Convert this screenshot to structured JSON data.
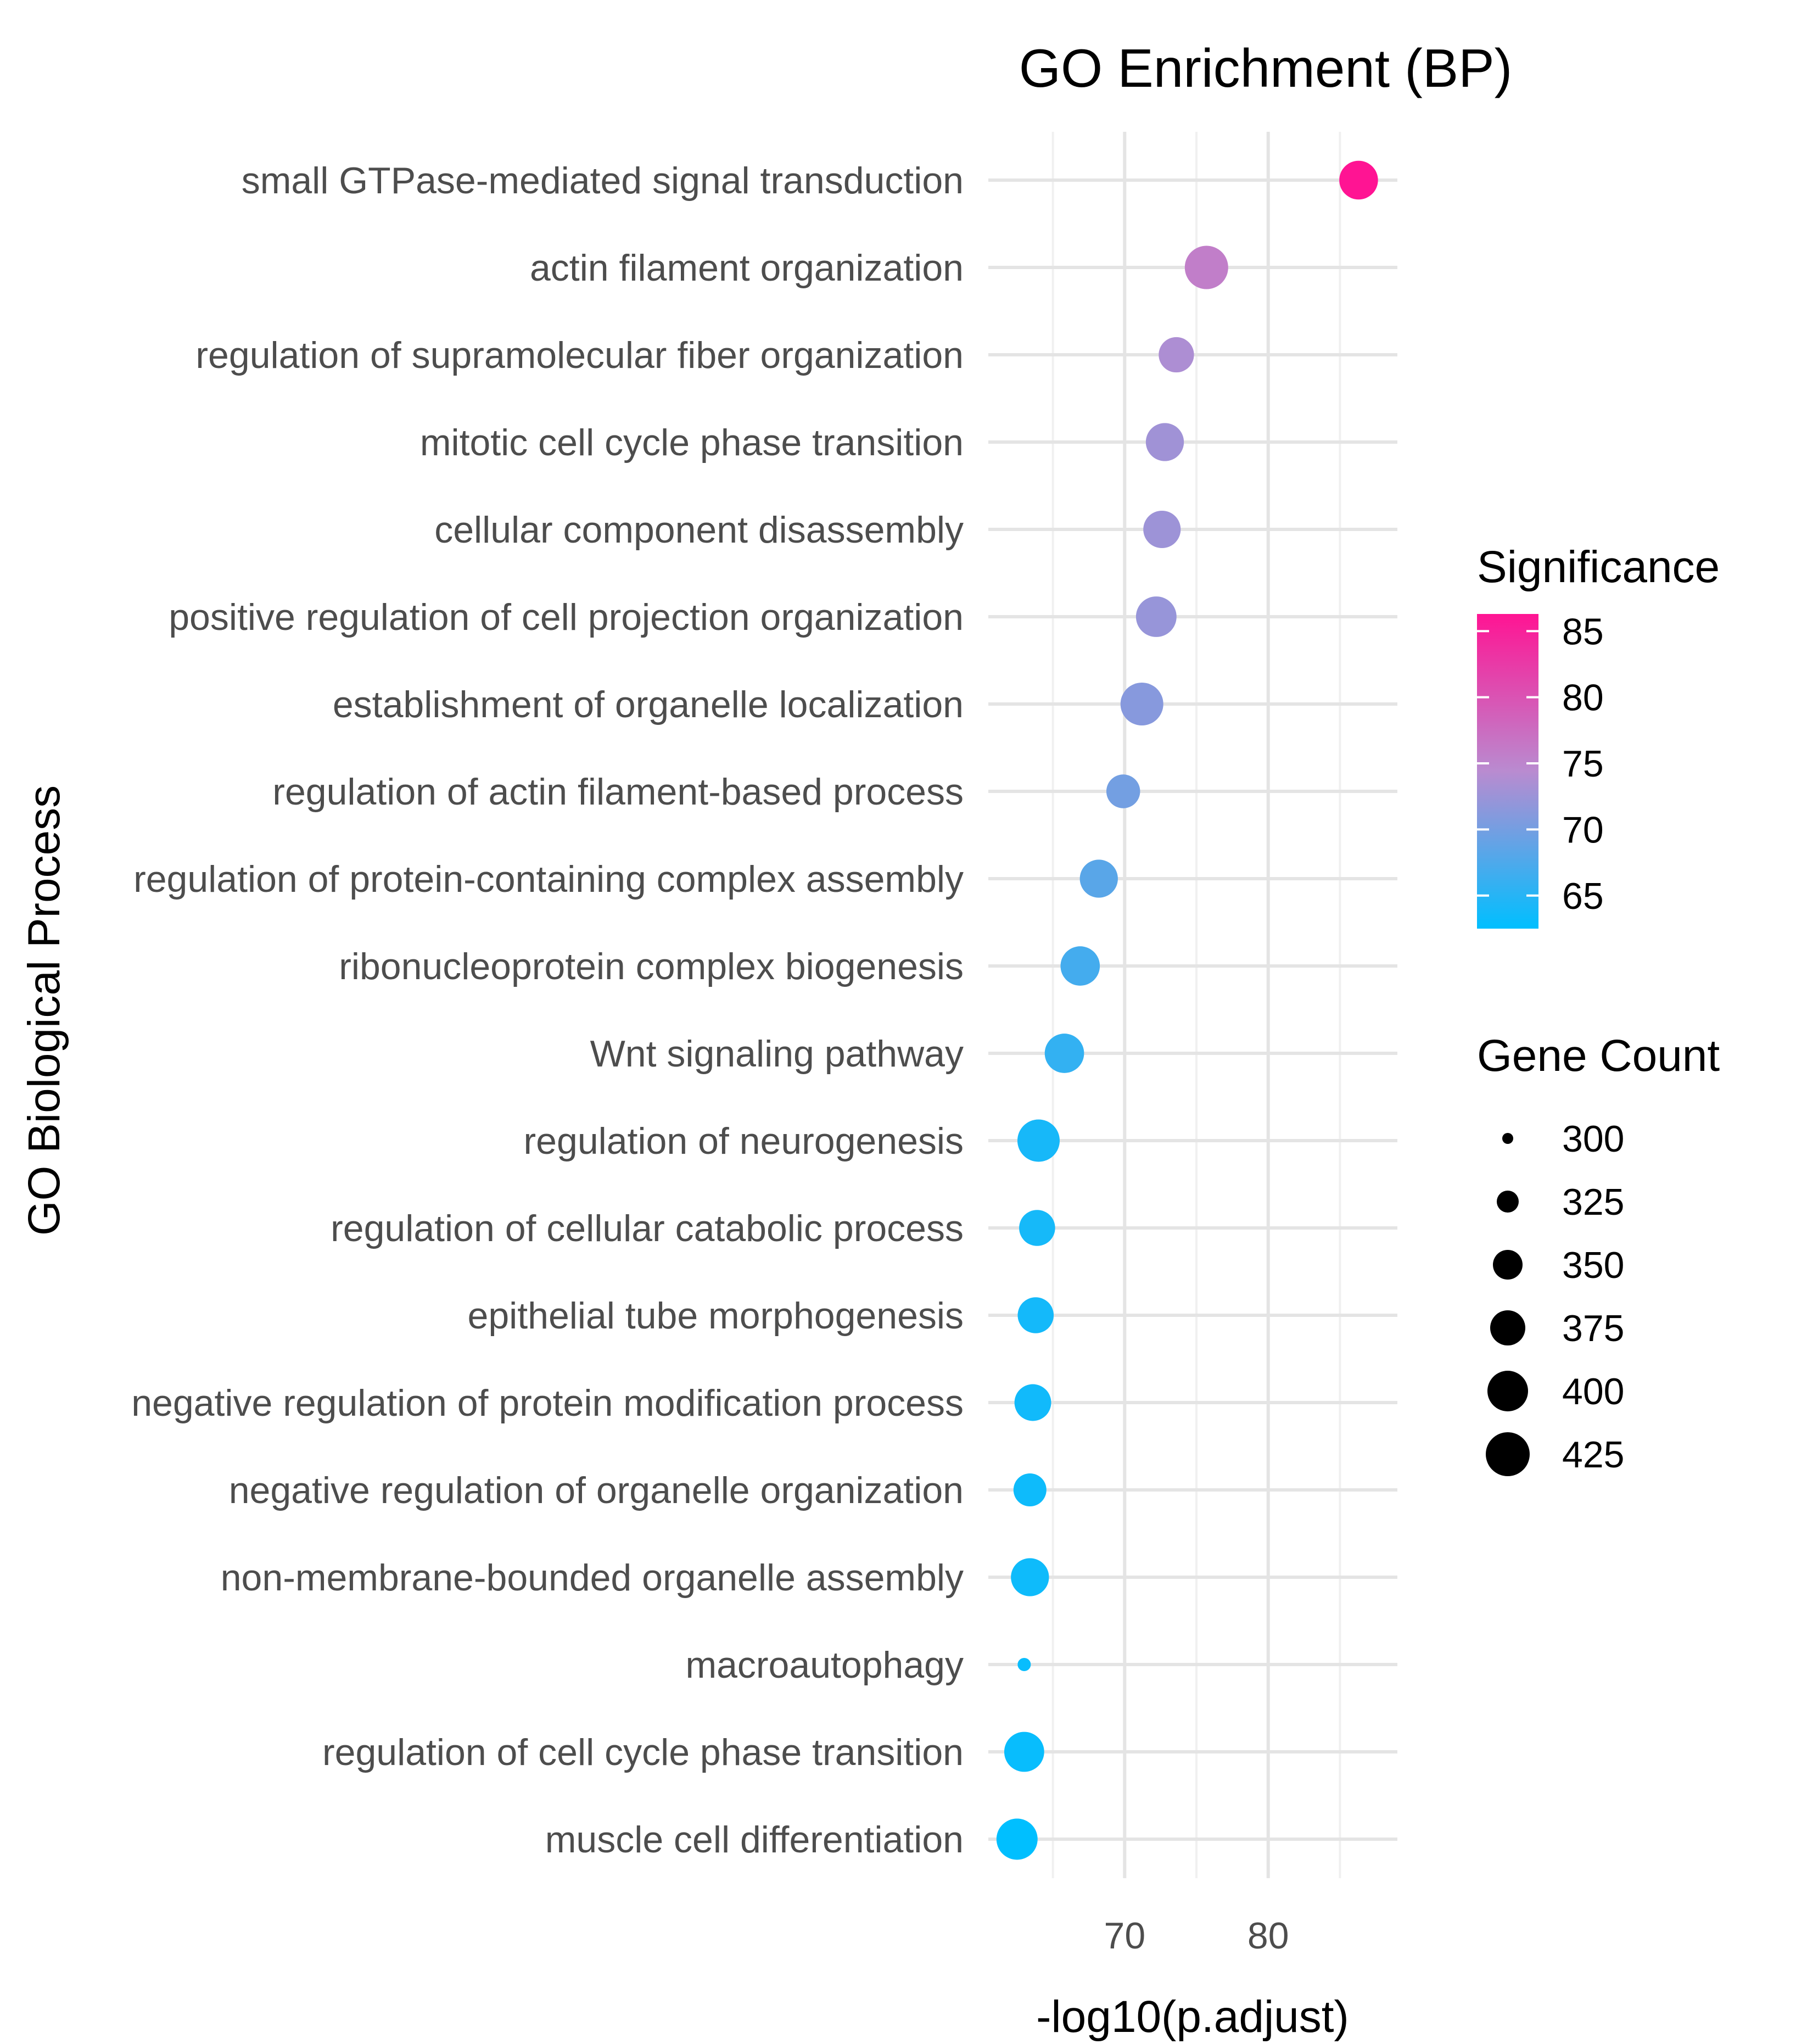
{
  "chart_data": {
    "type": "scatter",
    "title": "GO Enrichment (BP)",
    "xlabel": "-log10(p.adjust)",
    "ylabel": "GO Biological Process",
    "xlim": [
      60.5,
      89
    ],
    "x_ticks": [
      70,
      80
    ],
    "grid": true,
    "categories": [
      "small GTPase-mediated signal transduction",
      "actin filament organization",
      "regulation of supramolecular fiber organization",
      "mitotic cell cycle phase transition",
      "cellular component disassembly",
      "positive regulation of cell projection organization",
      "establishment of organelle localization",
      "regulation of actin filament-based process",
      "regulation of protein-containing complex assembly",
      "ribonucleoprotein complex biogenesis",
      "Wnt signaling pathway",
      "regulation of neurogenesis",
      "regulation of cellular catabolic process",
      "epithelial tube morphogenesis",
      "negative regulation of protein modification process",
      "negative regulation of organelle organization",
      "non-membrane-bounded organelle assembly",
      "macroautophagy",
      "regulation of cell cycle phase transition",
      "muscle cell differentiation"
    ],
    "x": [
      86.3,
      75.7,
      73.6,
      72.8,
      72.6,
      72.2,
      71.2,
      69.9,
      68.2,
      66.9,
      65.8,
      64.0,
      63.9,
      63.8,
      63.6,
      63.4,
      63.4,
      63.0,
      63.0,
      62.5
    ],
    "sizes": [
      380,
      420,
      355,
      375,
      370,
      395,
      415,
      345,
      375,
      385,
      385,
      410,
      360,
      360,
      365,
      340,
      375,
      280,
      390,
      400
    ],
    "color_range": [
      62.5,
      86.3
    ],
    "colors": {
      "low": "#00bfff",
      "mid": "#b98bd0",
      "high": "#ff1493"
    },
    "legend": {
      "color_title": "Significance",
      "color_ticks": [
        65,
        70,
        75,
        80,
        85
      ],
      "size_title": "Gene Count",
      "size_ticks": [
        300,
        325,
        350,
        375,
        400,
        425
      ],
      "placement": "right"
    }
  }
}
